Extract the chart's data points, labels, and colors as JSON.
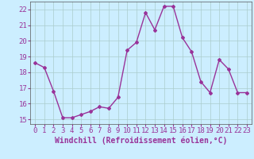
{
  "x": [
    0,
    1,
    2,
    3,
    4,
    5,
    6,
    7,
    8,
    9,
    10,
    11,
    12,
    13,
    14,
    15,
    16,
    17,
    18,
    19,
    20,
    21,
    22,
    23
  ],
  "y": [
    18.6,
    18.3,
    16.8,
    15.1,
    15.1,
    15.3,
    15.5,
    15.8,
    15.7,
    16.4,
    19.4,
    19.9,
    21.8,
    20.7,
    22.2,
    22.2,
    20.2,
    19.3,
    17.4,
    16.7,
    18.8,
    18.2,
    16.7,
    16.7
  ],
  "line_color": "#993399",
  "marker": "D",
  "marker_size": 2,
  "bg_color": "#cceeff",
  "grid_color": "#aacccc",
  "xlabel": "Windchill (Refroidissement éolien,°C)",
  "ylim": [
    14.7,
    22.5
  ],
  "xlim": [
    -0.5,
    23.5
  ],
  "yticks": [
    15,
    16,
    17,
    18,
    19,
    20,
    21,
    22
  ],
  "xticks": [
    0,
    1,
    2,
    3,
    4,
    5,
    6,
    7,
    8,
    9,
    10,
    11,
    12,
    13,
    14,
    15,
    16,
    17,
    18,
    19,
    20,
    21,
    22,
    23
  ],
  "xlabel_fontsize": 7.0,
  "tick_fontsize": 6.5,
  "line_width": 1.0,
  "text_color": "#993399"
}
